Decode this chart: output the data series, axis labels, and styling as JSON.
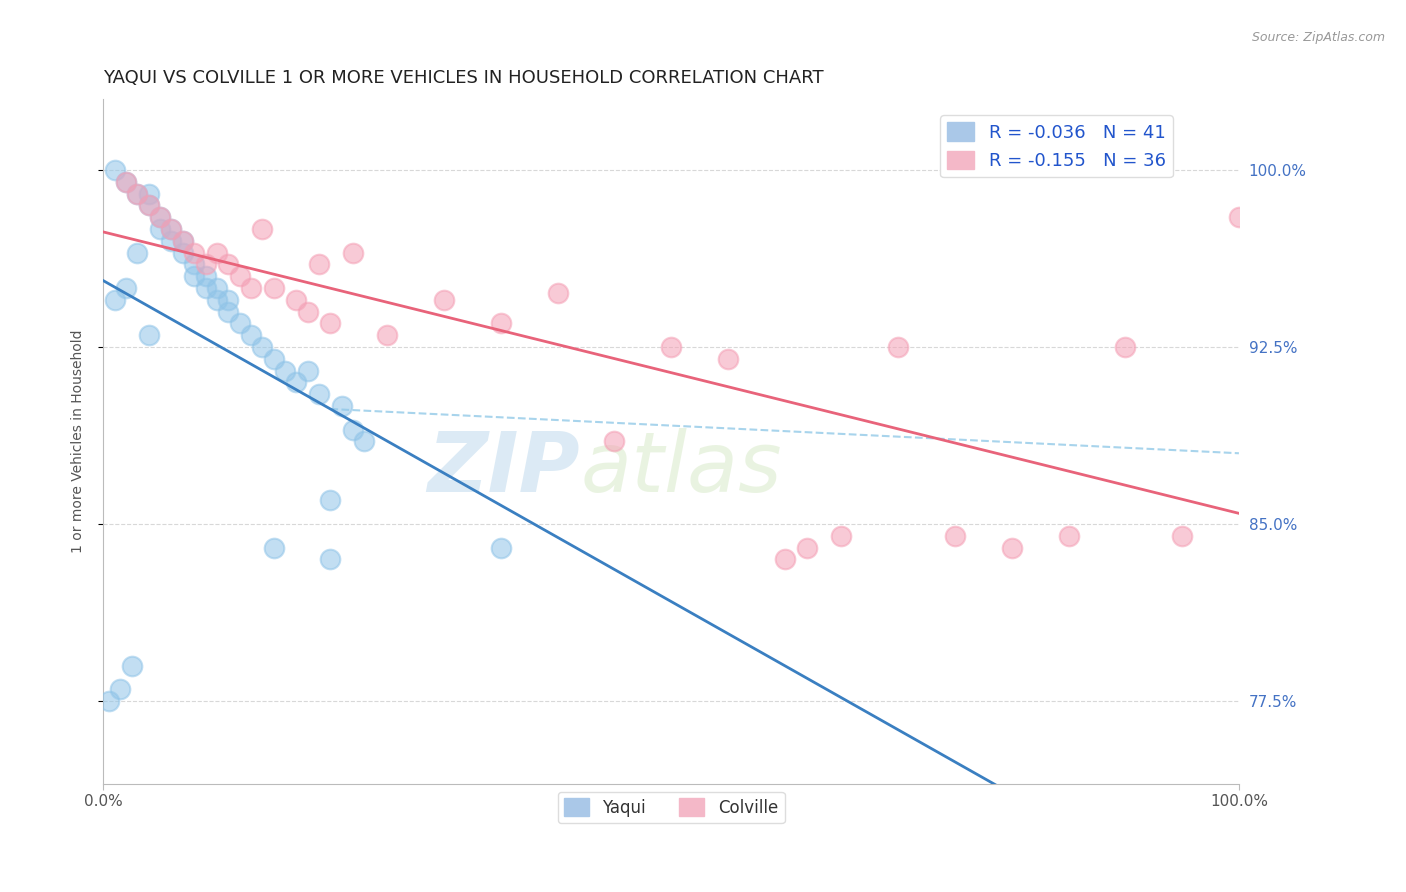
{
  "title": "YAQUI VS COLVILLE 1 OR MORE VEHICLES IN HOUSEHOLD CORRELATION CHART",
  "source_text": "Source: ZipAtlas.com",
  "ylabel": "1 or more Vehicles in Household",
  "xlim": [
    0.0,
    100.0
  ],
  "ylim": [
    74.0,
    103.0
  ],
  "yticks": [
    77.5,
    85.0,
    92.5,
    100.0
  ],
  "ytick_labels": [
    "77.5%",
    "85.0%",
    "92.5%",
    "100.0%"
  ],
  "xtick_labels": [
    "0.0%",
    "100.0%"
  ],
  "legend_R_blue": "R = -0.036",
  "legend_N_blue": "N = 41",
  "legend_R_pink": "R = -0.155",
  "legend_N_pink": "N = 36",
  "yaqui_x": [
    1,
    2,
    3,
    4,
    4,
    5,
    5,
    6,
    6,
    7,
    7,
    8,
    8,
    9,
    9,
    10,
    10,
    11,
    11,
    12,
    13,
    14,
    15,
    16,
    17,
    18,
    19,
    20,
    21,
    22,
    23,
    1,
    2,
    3,
    15,
    20,
    35,
    0.5,
    1.5,
    2.5,
    4
  ],
  "yaqui_y": [
    100.0,
    99.5,
    99.0,
    98.5,
    99.0,
    97.5,
    98.0,
    97.0,
    97.5,
    96.5,
    97.0,
    95.5,
    96.0,
    95.0,
    95.5,
    94.5,
    95.0,
    94.0,
    94.5,
    93.5,
    93.0,
    92.5,
    92.0,
    91.5,
    91.0,
    91.5,
    90.5,
    86.0,
    90.0,
    89.0,
    88.5,
    94.5,
    95.0,
    96.5,
    84.0,
    83.5,
    84.0,
    77.5,
    78.0,
    79.0,
    93.0
  ],
  "colville_x": [
    2,
    3,
    4,
    5,
    6,
    7,
    8,
    9,
    10,
    11,
    12,
    13,
    14,
    15,
    17,
    18,
    19,
    20,
    22,
    25,
    30,
    35,
    40,
    45,
    50,
    55,
    60,
    62,
    65,
    70,
    75,
    80,
    85,
    90,
    95,
    100
  ],
  "colville_y": [
    99.5,
    99.0,
    98.5,
    98.0,
    97.5,
    97.0,
    96.5,
    96.0,
    96.5,
    96.0,
    95.5,
    95.0,
    97.5,
    95.0,
    94.5,
    94.0,
    96.0,
    93.5,
    96.5,
    93.0,
    94.5,
    93.5,
    94.8,
    88.5,
    92.5,
    92.0,
    83.5,
    84.0,
    84.5,
    92.5,
    84.5,
    84.0,
    84.5,
    92.5,
    84.5,
    98.0
  ],
  "blue_dot_color": "#90c4e8",
  "pink_dot_color": "#f4a0b5",
  "blue_line_color": "#3a7fc1",
  "pink_line_color": "#e8637a",
  "dashed_line_color": "#a8d4ec",
  "bg_color": "#ffffff",
  "grid_color": "#d8d8d8",
  "watermark_zip": "ZIP",
  "watermark_atlas": "atlas",
  "title_fontsize": 13,
  "axis_label_fontsize": 10,
  "tick_fontsize": 11,
  "legend_fontsize": 13
}
